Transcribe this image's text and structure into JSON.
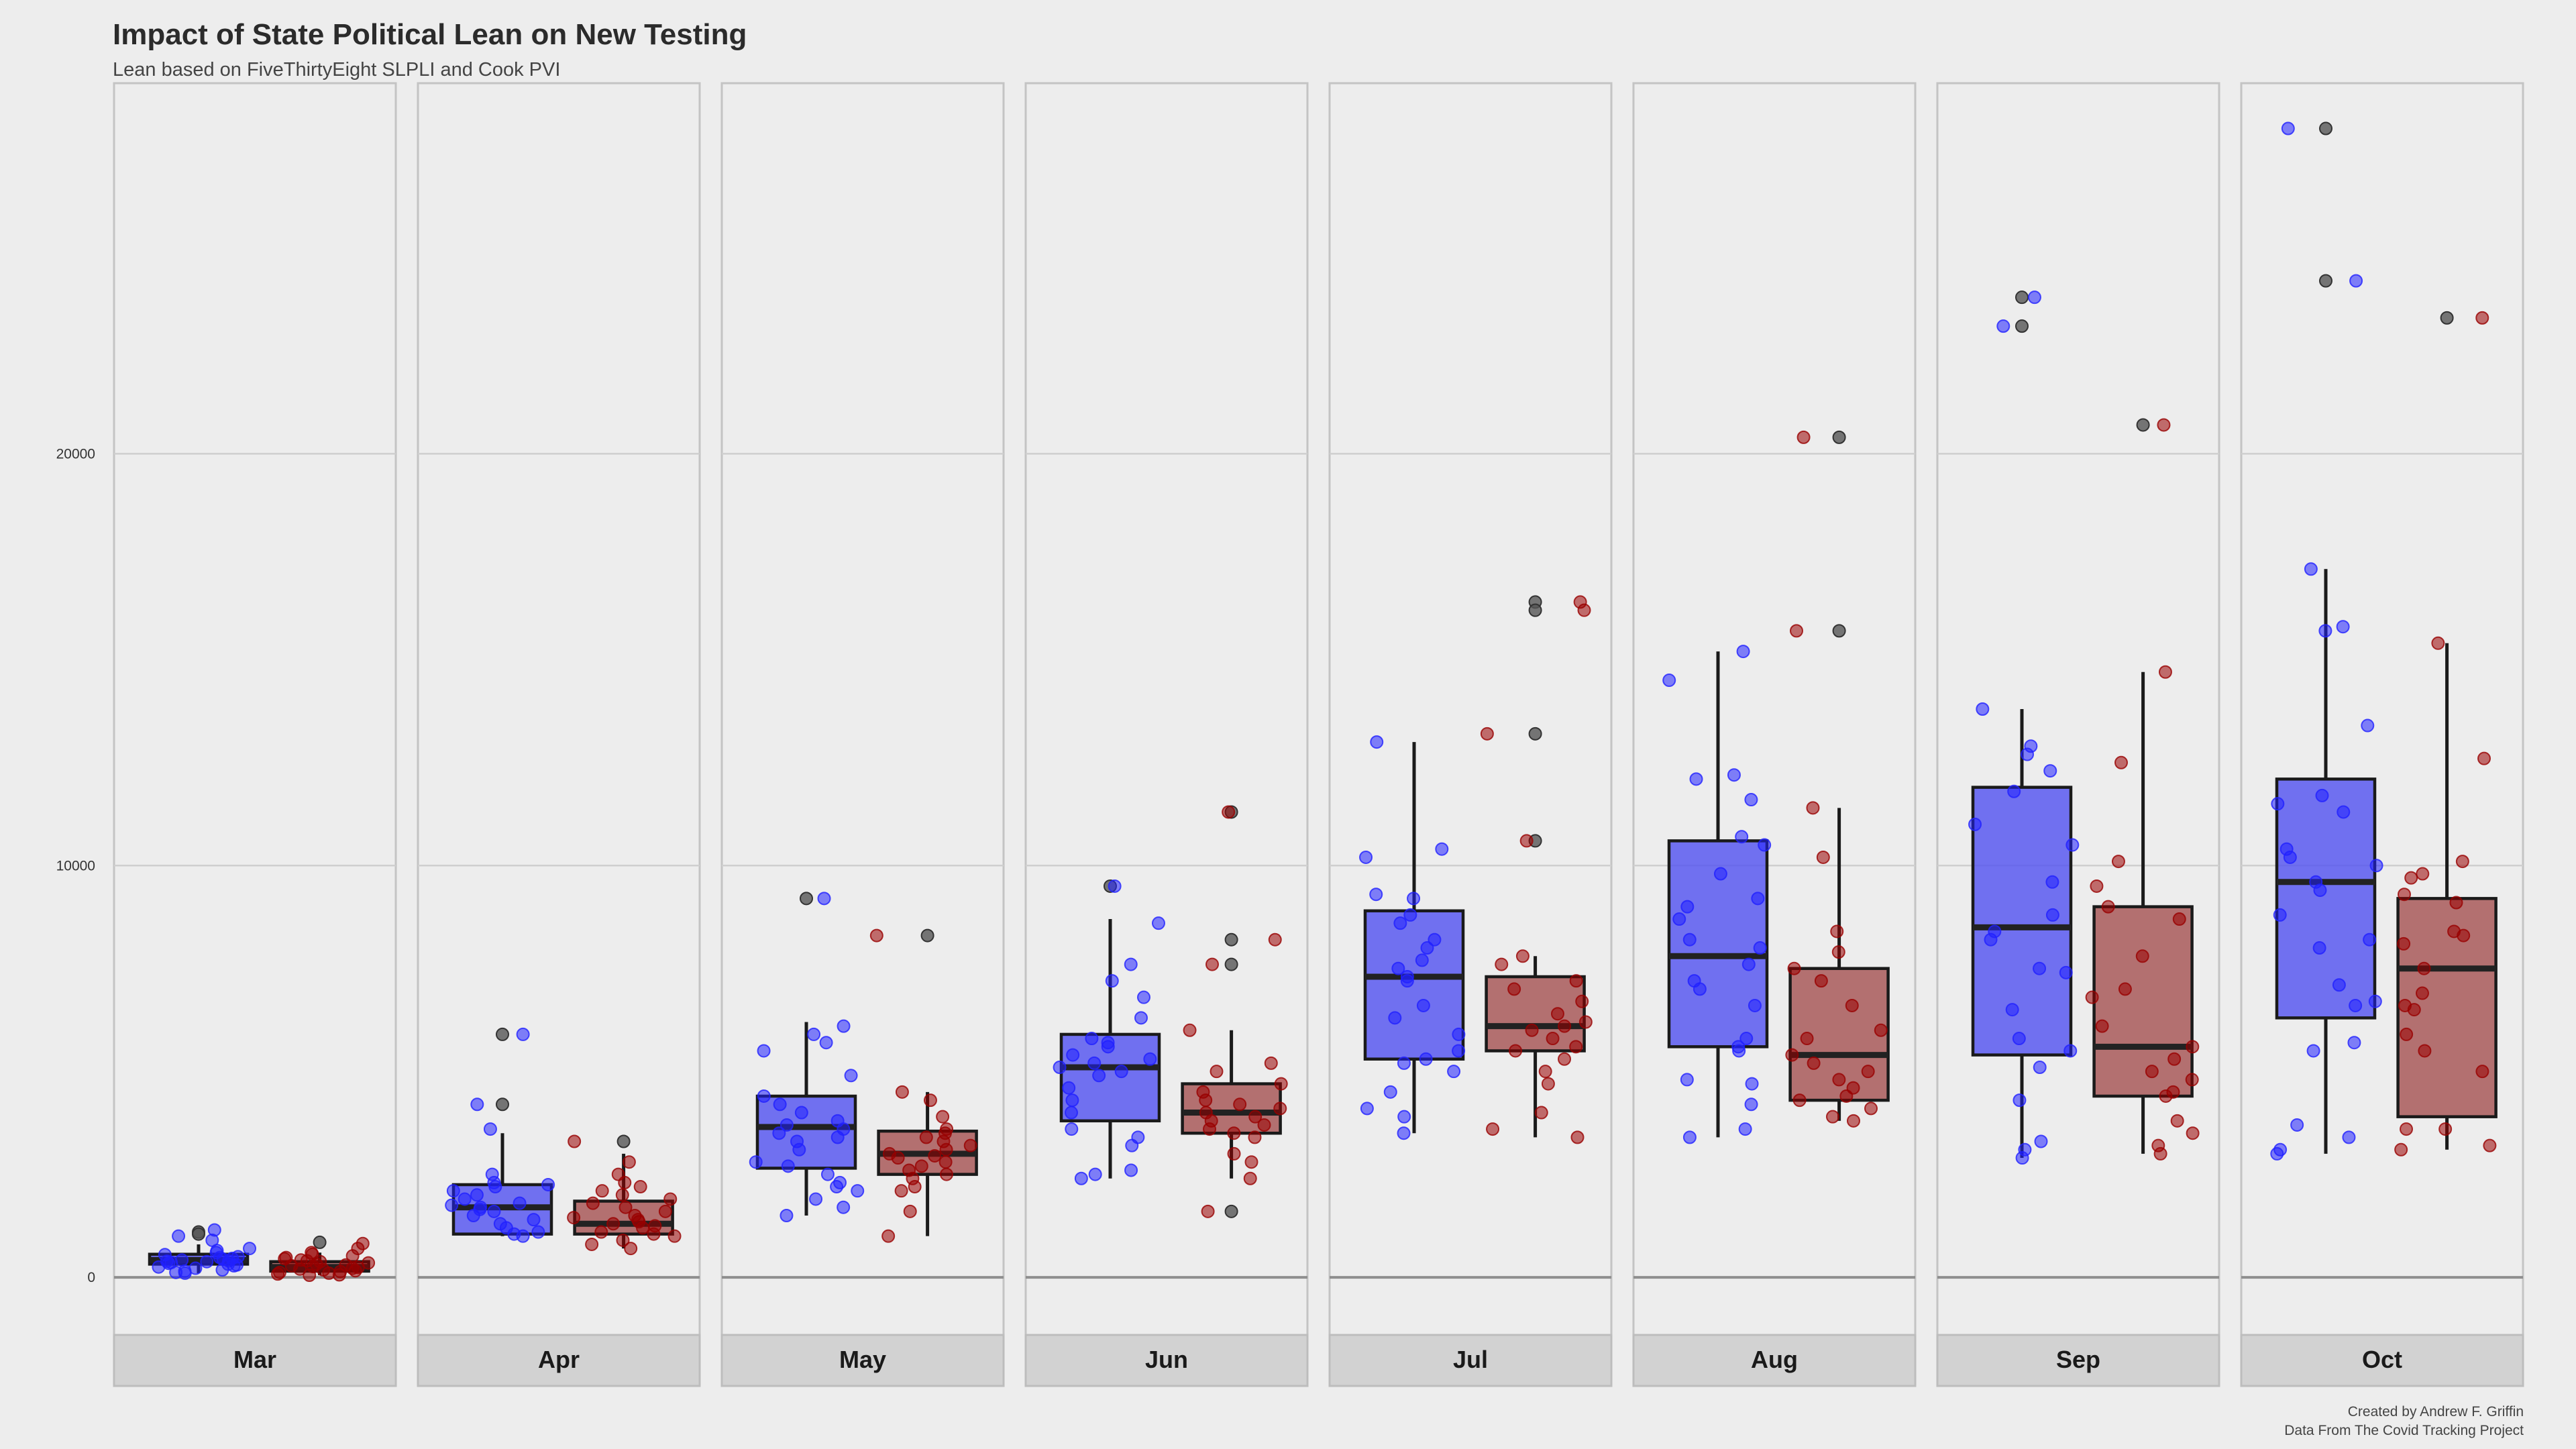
{
  "chart_data": {
    "type": "box",
    "title": "Impact of State Political Lean on New Testing",
    "subtitle": "Lean based on FiveThirtyEight SLPLI and Cook PVI",
    "caption": [
      "Created by Andrew F. Griffin",
      "Data From The Covid Tracking Project"
    ],
    "xlabel": "",
    "ylabel": "",
    "ylim": [
      -1400,
      29000
    ],
    "y_ticks": [
      0,
      10000,
      20000
    ],
    "grid": true,
    "legend": "none",
    "facet_by": "month",
    "series_colors": {
      "blue": "#5050f0",
      "red": "#a45050"
    },
    "point_colors": {
      "blue": "#2020ff",
      "red": "#990000",
      "outlier": "#555555"
    },
    "facets": [
      {
        "label": "Mar",
        "boxes": [
          {
            "series": "blue",
            "whisker_low": 100,
            "q1": 320,
            "median": 420,
            "q3": 560,
            "whisker_high": 800,
            "points": [
              1150,
              1000,
              900,
              700,
              650,
              600,
              550,
              500,
              480,
              460,
              440,
              420,
              400,
              390,
              380,
              360,
              340,
              320,
              300,
              280,
              250,
              220,
              180,
              150,
              120,
              100
            ],
            "outliers": [
              1100,
              1050
            ]
          },
          {
            "series": "red",
            "whisker_low": 50,
            "q1": 150,
            "median": 250,
            "q3": 380,
            "whisker_high": 600,
            "points": [
              820,
              700,
              600,
              560,
              520,
              480,
              450,
              420,
              400,
              380,
              350,
              320,
              300,
              280,
              260,
              240,
              220,
              200,
              180,
              160,
              140,
              120,
              100,
              80,
              60,
              50
            ],
            "outliers": [
              850
            ]
          }
        ]
      },
      {
        "label": "Apr",
        "boxes": [
          {
            "series": "blue",
            "whisker_low": 1000,
            "q1": 1050,
            "median": 1700,
            "q3": 2250,
            "whisker_high": 3500,
            "points": [
              5900,
              4200,
              3600,
              2500,
              2300,
              2250,
              2200,
              2100,
              2000,
              1900,
              1800,
              1750,
              1700,
              1650,
              1600,
              1500,
              1400,
              1300,
              1200,
              1100,
              1050,
              1000
            ],
            "outliers": [
              5900,
              4200
            ]
          },
          {
            "series": "red",
            "whisker_low": 700,
            "q1": 1050,
            "median": 1300,
            "q3": 1850,
            "whisker_high": 3000,
            "points": [
              3300,
              2800,
              2500,
              2300,
              2200,
              2100,
              2000,
              1900,
              1800,
              1700,
              1600,
              1500,
              1450,
              1400,
              1350,
              1300,
              1250,
              1200,
              1100,
              1050,
              1000,
              900,
              800,
              700
            ],
            "outliers": [
              3300
            ]
          }
        ]
      },
      {
        "label": "May",
        "boxes": [
          {
            "series": "blue",
            "whisker_low": 1500,
            "q1": 2650,
            "median": 3650,
            "q3": 4400,
            "whisker_high": 6200,
            "points": [
              9200,
              6100,
              5900,
              5700,
              5500,
              4900,
              4400,
              4200,
              4000,
              3800,
              3700,
              3600,
              3500,
              3400,
              3300,
              3100,
              2800,
              2700,
              2500,
              2300,
              2200,
              2100,
              1900,
              1700,
              1500
            ],
            "outliers": [
              9200
            ]
          },
          {
            "series": "red",
            "whisker_low": 1000,
            "q1": 2500,
            "median": 3000,
            "q3": 3550,
            "whisker_high": 4500,
            "points": [
              8300,
              4500,
              4300,
              3900,
              3600,
              3500,
              3400,
              3300,
              3200,
              3100,
              3000,
              2950,
              2900,
              2800,
              2700,
              2600,
              2500,
              2400,
              2200,
              2100,
              1600,
              1000
            ],
            "outliers": [
              8300
            ]
          }
        ]
      },
      {
        "label": "Jun",
        "boxes": [
          {
            "series": "blue",
            "whisker_low": 2400,
            "q1": 3800,
            "median": 5100,
            "q3": 5900,
            "whisker_high": 8700,
            "points": [
              9500,
              8600,
              7600,
              7200,
              6800,
              6300,
              5800,
              5700,
              5600,
              5400,
              5300,
              5200,
              5100,
              5000,
              4900,
              4600,
              4300,
              4000,
              3600,
              3400,
              3200,
              2600,
              2500,
              2400
            ],
            "outliers": [
              9500
            ]
          },
          {
            "series": "red",
            "whisker_low": 2400,
            "q1": 3500,
            "median": 4000,
            "q3": 4700,
            "whisker_high": 6000,
            "points": [
              11300,
              8200,
              7600,
              6000,
              5200,
              5000,
              4700,
              4500,
              4300,
              4200,
              4100,
              4000,
              3900,
              3800,
              3700,
              3600,
              3500,
              3400,
              3000,
              2800,
              2400,
              1600
            ],
            "outliers": [
              11300,
              8200,
              7600,
              1600
            ]
          }
        ]
      },
      {
        "label": "Jul",
        "boxes": [
          {
            "series": "blue",
            "whisker_low": 3500,
            "q1": 5300,
            "median": 7300,
            "q3": 8900,
            "whisker_high": 13000,
            "points": [
              13000,
              10400,
              10200,
              9300,
              9200,
              8800,
              8600,
              8200,
              8000,
              7700,
              7500,
              7300,
              7200,
              6600,
              6300,
              5900,
              5500,
              5300,
              5200,
              5000,
              4500,
              4100,
              3900,
              3500
            ],
            "outliers": []
          },
          {
            "series": "red",
            "whisker_low": 3400,
            "q1": 5500,
            "median": 6100,
            "q3": 7300,
            "whisker_high": 7800,
            "points": [
              16400,
              16200,
              13200,
              10600,
              7800,
              7600,
              7200,
              7000,
              6700,
              6400,
              6200,
              6100,
              6000,
              5800,
              5600,
              5500,
              5300,
              5000,
              4700,
              4000,
              3600,
              3400
            ],
            "outliers": [
              16400,
              16200,
              13200,
              10600
            ]
          }
        ]
      },
      {
        "label": "Aug",
        "boxes": [
          {
            "series": "blue",
            "whisker_low": 3400,
            "q1": 5600,
            "median": 7800,
            "q3": 10600,
            "whisker_high": 15200,
            "points": [
              15200,
              14500,
              12200,
              12100,
              11600,
              10700,
              10500,
              9800,
              9200,
              9000,
              8700,
              8200,
              8000,
              7600,
              7200,
              7000,
              6600,
              5800,
              5600,
              5500,
              4800,
              4700,
              4200,
              3600,
              3400
            ],
            "outliers": []
          },
          {
            "series": "red",
            "whisker_low": 3800,
            "q1": 4300,
            "median": 5400,
            "q3": 7500,
            "whisker_high": 11400,
            "points": [
              20400,
              15700,
              11400,
              10200,
              8400,
              7900,
              7500,
              7200,
              6600,
              6000,
              5800,
              5400,
              5200,
              5000,
              4800,
              4600,
              4400,
              4300,
              4100,
              3900,
              3800
            ],
            "outliers": [
              20400,
              15700
            ]
          }
        ]
      },
      {
        "label": "Sep",
        "boxes": [
          {
            "series": "blue",
            "whisker_low": 2900,
            "q1": 5400,
            "median": 8500,
            "q3": 11900,
            "whisker_high": 13800,
            "points": [
              23800,
              23100,
              13800,
              12900,
              12700,
              12300,
              11800,
              11000,
              10500,
              9600,
              8800,
              8400,
              8200,
              7500,
              7400,
              6500,
              5800,
              5500,
              5100,
              4300,
              3300,
              3100,
              2900
            ],
            "outliers": [
              23800,
              23100
            ]
          },
          {
            "series": "red",
            "whisker_low": 3000,
            "q1": 4400,
            "median": 5600,
            "q3": 9000,
            "whisker_high": 14700,
            "points": [
              20700,
              14700,
              12500,
              10100,
              9500,
              9000,
              8700,
              7800,
              7000,
              6800,
              6100,
              5600,
              5300,
              5000,
              4800,
              4500,
              4400,
              3800,
              3500,
              3200,
              3000
            ],
            "outliers": [
              20700
            ]
          }
        ]
      },
      {
        "label": "Oct",
        "boxes": [
          {
            "series": "blue",
            "whisker_low": 3000,
            "q1": 6300,
            "median": 9600,
            "q3": 12100,
            "whisker_high": 17200,
            "points": [
              27900,
              24200,
              17200,
              15800,
              15700,
              13400,
              11700,
              11500,
              11300,
              10400,
              10200,
              10000,
              9600,
              9400,
              8800,
              8200,
              8000,
              7100,
              6700,
              6600,
              5700,
              5500,
              3700,
              3400,
              3100,
              3000
            ],
            "outliers": [
              27900,
              24200
            ]
          },
          {
            "series": "red",
            "whisker_low": 3100,
            "q1": 3900,
            "median": 7500,
            "q3": 9200,
            "whisker_high": 15400,
            "points": [
              23300,
              15400,
              12600,
              10100,
              9800,
              9700,
              9300,
              9100,
              8400,
              8300,
              8100,
              7500,
              6900,
              6600,
              6500,
              5900,
              5500,
              5000,
              3600,
              3600,
              3200,
              3100
            ],
            "outliers": [
              23300
            ]
          }
        ]
      }
    ]
  }
}
